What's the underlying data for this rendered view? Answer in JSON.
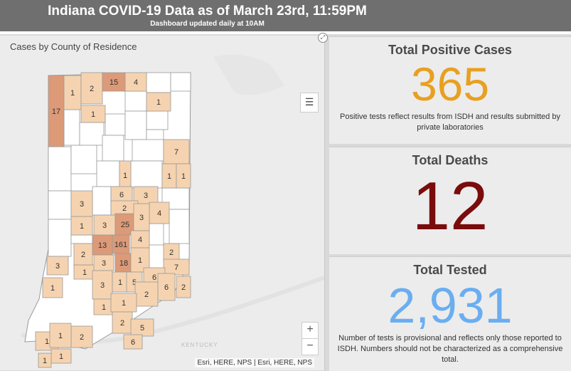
{
  "header": {
    "title": "Indiana COVID-19 Data as of March 23rd, 11:59PM",
    "subtitle": "Dashboard updated daily at 10AM"
  },
  "map": {
    "title": "Cases by County of Residence",
    "attribution": "Esri, HERE, NPS | Esri, HERE, NPS",
    "zoom_in": "+",
    "zoom_out": "−",
    "region_label": "KENTUCKY",
    "legend_icon": "list-icon",
    "expand_icon": "expand-icon",
    "counties": [
      {
        "count": "17",
        "shade": "dark"
      },
      {
        "count": "1",
        "shade": "light"
      },
      {
        "count": "2",
        "shade": "light"
      },
      {
        "count": "15",
        "shade": "dark"
      },
      {
        "count": "4",
        "shade": "light"
      },
      {
        "count": "1",
        "shade": "light"
      },
      {
        "count": "1",
        "shade": "light"
      },
      {
        "count": "7",
        "shade": "light"
      },
      {
        "count": "1",
        "shade": "light"
      },
      {
        "count": "1",
        "shade": "light"
      },
      {
        "count": "1",
        "shade": "light"
      },
      {
        "count": "6",
        "shade": "light"
      },
      {
        "count": "3",
        "shade": "light"
      },
      {
        "count": "3",
        "shade": "light"
      },
      {
        "count": "2",
        "shade": "light"
      },
      {
        "count": "4",
        "shade": "light"
      },
      {
        "count": "1",
        "shade": "light"
      },
      {
        "count": "3",
        "shade": "light"
      },
      {
        "count": "25",
        "shade": "dark"
      },
      {
        "count": "3",
        "shade": "light"
      },
      {
        "count": "13",
        "shade": "dark"
      },
      {
        "count": "161",
        "shade": "dark"
      },
      {
        "count": "4",
        "shade": "light"
      },
      {
        "count": "2",
        "shade": "light"
      },
      {
        "count": "3",
        "shade": "light"
      },
      {
        "count": "1",
        "shade": "light"
      },
      {
        "count": "3",
        "shade": "light"
      },
      {
        "count": "18",
        "shade": "dark"
      },
      {
        "count": "1",
        "shade": "light"
      },
      {
        "count": "7",
        "shade": "light"
      },
      {
        "count": "2",
        "shade": "light"
      },
      {
        "count": "6",
        "shade": "light"
      },
      {
        "count": "3",
        "shade": "light"
      },
      {
        "count": "1",
        "shade": "light"
      },
      {
        "count": "5",
        "shade": "light"
      },
      {
        "count": "6",
        "shade": "light"
      },
      {
        "count": "2",
        "shade": "light"
      },
      {
        "count": "1",
        "shade": "light"
      },
      {
        "count": "1",
        "shade": "light"
      },
      {
        "count": "2",
        "shade": "light"
      },
      {
        "count": "1",
        "shade": "light"
      },
      {
        "count": "2",
        "shade": "light"
      },
      {
        "count": "5",
        "shade": "light"
      },
      {
        "count": "1",
        "shade": "light"
      },
      {
        "count": "2",
        "shade": "light"
      },
      {
        "count": "6",
        "shade": "light"
      },
      {
        "count": "1",
        "shade": "light"
      },
      {
        "count": "1",
        "shade": "light"
      },
      {
        "count": "1",
        "shade": "light"
      }
    ]
  },
  "cards": {
    "positive": {
      "label": "Total Positive Cases",
      "value": "365",
      "note": "Positive tests reflect results from ISDH and results submitted by private laboratories",
      "color": "#e8a020"
    },
    "deaths": {
      "label": "Total Deaths",
      "value": "12",
      "color": "#7a0c0c"
    },
    "tested": {
      "label": "Total Tested",
      "value": "2,931",
      "note": "Number of tests is provisional and reflects only those reported to ISDH. Numbers should not be characterized as a comprehensive total.",
      "color": "#6aaef0"
    }
  },
  "colors": {
    "light_county": "#f6d3b0",
    "dark_county": "#dc9a78",
    "empty_county": "#ffffff"
  }
}
